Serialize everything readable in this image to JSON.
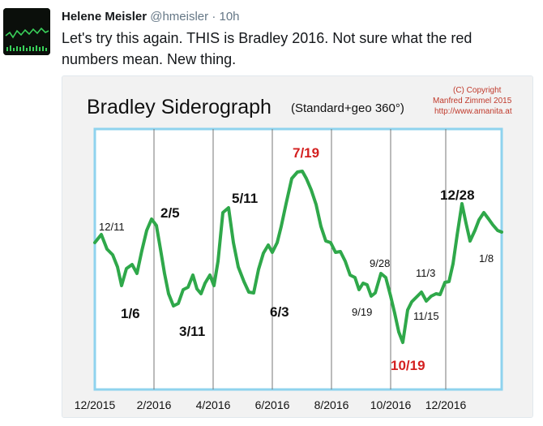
{
  "tweet": {
    "author_name": "Helene Meisler",
    "handle": "@hmeisler",
    "separator": "·",
    "time": "10h",
    "text": "Let's try this again. THIS is Bradley 2016. Not sure what the red numbers mean. New thing."
  },
  "chart": {
    "title": "Bradley Siderograph",
    "subtitle": "(Standard+geo 360°)",
    "copyright": [
      "(C) Copyright",
      "Manfred Zimmel 2015",
      "http://www.amanita.at"
    ],
    "colors": {
      "line": "#2fa84a",
      "highlight": "#d42020",
      "border": "#8fd3ee",
      "text": "#111111"
    }
  },
  "chart_data": {
    "type": "line",
    "title": "Bradley Siderograph",
    "xlabel": "",
    "ylabel": "",
    "x_ticks": [
      "12/2015",
      "2/2016",
      "4/2016",
      "6/2016",
      "8/2016",
      "10/2016",
      "12/2016"
    ],
    "grid": true,
    "annotations": [
      {
        "label": "12/11",
        "color": "black",
        "bold": false
      },
      {
        "label": "1/6",
        "color": "black",
        "bold": true
      },
      {
        "label": "2/5",
        "color": "black",
        "bold": true
      },
      {
        "label": "3/11",
        "color": "black",
        "bold": true
      },
      {
        "label": "5/11",
        "color": "black",
        "bold": true
      },
      {
        "label": "6/3",
        "color": "black",
        "bold": true
      },
      {
        "label": "7/19",
        "color": "red",
        "bold": true
      },
      {
        "label": "9/19",
        "color": "black",
        "bold": false
      },
      {
        "label": "9/28",
        "color": "black",
        "bold": false
      },
      {
        "label": "10/19",
        "color": "red",
        "bold": true
      },
      {
        "label": "11/3",
        "color": "black",
        "bold": false
      },
      {
        "label": "11/15",
        "color": "black",
        "bold": false
      },
      {
        "label": "12/28",
        "color": "black",
        "bold": true
      },
      {
        "label": "1/8",
        "color": "black",
        "bold": false
      }
    ]
  }
}
